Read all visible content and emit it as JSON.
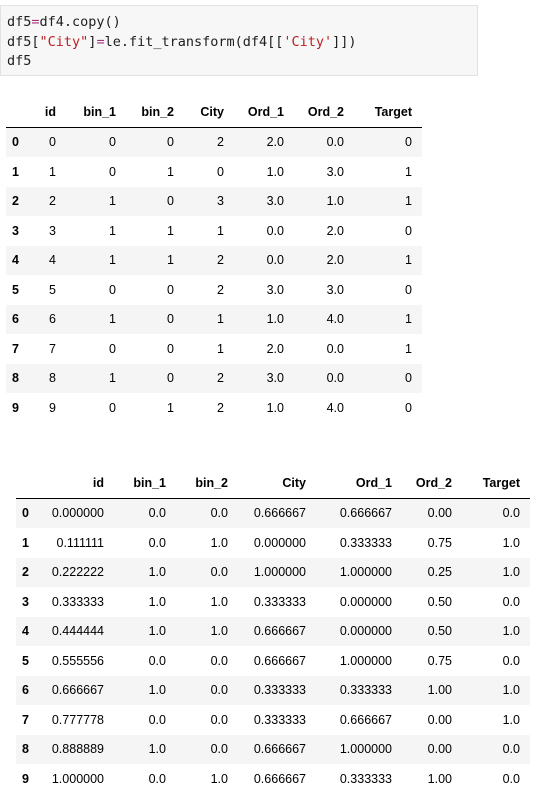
{
  "code": {
    "lines": [
      [
        {
          "t": "df5",
          "c": ""
        },
        {
          "t": "=",
          "c": "op"
        },
        {
          "t": "df4.copy()",
          "c": ""
        }
      ],
      [
        {
          "t": "df5[",
          "c": ""
        },
        {
          "t": "\"City\"",
          "c": "str"
        },
        {
          "t": "]",
          "c": ""
        },
        {
          "t": "=",
          "c": "op"
        },
        {
          "t": "le.fit_transform(df4[[",
          "c": ""
        },
        {
          "t": "'City'",
          "c": "str"
        },
        {
          "t": "]])",
          "c": ""
        }
      ],
      [
        {
          "t": "df5",
          "c": ""
        }
      ]
    ]
  },
  "table1": {
    "columns": [
      "id",
      "bin_1",
      "bin_2",
      "City",
      "Ord_1",
      "Ord_2",
      "Target"
    ],
    "rows": [
      {
        "index": "0",
        "cells": [
          "0",
          "0",
          "0",
          "2",
          "2.0",
          "0.0",
          "0"
        ]
      },
      {
        "index": "1",
        "cells": [
          "1",
          "0",
          "1",
          "0",
          "1.0",
          "3.0",
          "1"
        ]
      },
      {
        "index": "2",
        "cells": [
          "2",
          "1",
          "0",
          "3",
          "3.0",
          "1.0",
          "1"
        ]
      },
      {
        "index": "3",
        "cells": [
          "3",
          "1",
          "1",
          "1",
          "0.0",
          "2.0",
          "0"
        ]
      },
      {
        "index": "4",
        "cells": [
          "4",
          "1",
          "1",
          "2",
          "0.0",
          "2.0",
          "1"
        ]
      },
      {
        "index": "5",
        "cells": [
          "5",
          "0",
          "0",
          "2",
          "3.0",
          "3.0",
          "0"
        ]
      },
      {
        "index": "6",
        "cells": [
          "6",
          "1",
          "0",
          "1",
          "1.0",
          "4.0",
          "1"
        ]
      },
      {
        "index": "7",
        "cells": [
          "7",
          "0",
          "0",
          "1",
          "2.0",
          "0.0",
          "1"
        ]
      },
      {
        "index": "8",
        "cells": [
          "8",
          "1",
          "0",
          "2",
          "3.0",
          "0.0",
          "0"
        ]
      },
      {
        "index": "9",
        "cells": [
          "9",
          "0",
          "1",
          "2",
          "1.0",
          "4.0",
          "0"
        ]
      }
    ]
  },
  "table2": {
    "columns": [
      "id",
      "bin_1",
      "bin_2",
      "City",
      "Ord_1",
      "Ord_2",
      "Target"
    ],
    "rows": [
      {
        "index": "0",
        "cells": [
          "0.000000",
          "0.0",
          "0.0",
          "0.666667",
          "0.666667",
          "0.00",
          "0.0"
        ]
      },
      {
        "index": "1",
        "cells": [
          "0.111111",
          "0.0",
          "1.0",
          "0.000000",
          "0.333333",
          "0.75",
          "1.0"
        ]
      },
      {
        "index": "2",
        "cells": [
          "0.222222",
          "1.0",
          "0.0",
          "1.000000",
          "1.000000",
          "0.25",
          "1.0"
        ]
      },
      {
        "index": "3",
        "cells": [
          "0.333333",
          "1.0",
          "1.0",
          "0.333333",
          "0.000000",
          "0.50",
          "0.0"
        ]
      },
      {
        "index": "4",
        "cells": [
          "0.444444",
          "1.0",
          "1.0",
          "0.666667",
          "0.000000",
          "0.50",
          "1.0"
        ]
      },
      {
        "index": "5",
        "cells": [
          "0.555556",
          "0.0",
          "0.0",
          "0.666667",
          "1.000000",
          "0.75",
          "0.0"
        ]
      },
      {
        "index": "6",
        "cells": [
          "0.666667",
          "1.0",
          "0.0",
          "0.333333",
          "0.333333",
          "1.00",
          "1.0"
        ]
      },
      {
        "index": "7",
        "cells": [
          "0.777778",
          "0.0",
          "0.0",
          "0.333333",
          "0.666667",
          "0.00",
          "1.0"
        ]
      },
      {
        "index": "8",
        "cells": [
          "0.888889",
          "1.0",
          "0.0",
          "0.666667",
          "1.000000",
          "0.00",
          "0.0"
        ]
      },
      {
        "index": "9",
        "cells": [
          "1.000000",
          "0.0",
          "1.0",
          "0.666667",
          "0.333333",
          "1.00",
          "0.0"
        ]
      }
    ]
  }
}
